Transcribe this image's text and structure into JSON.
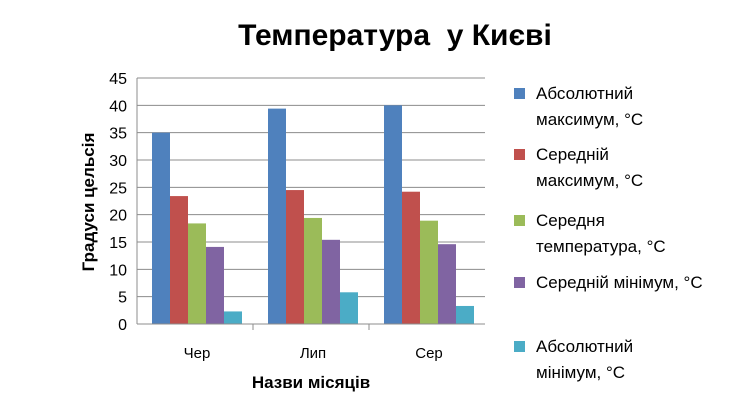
{
  "chart_data": {
    "type": "bar",
    "title": "Температура  у Києві",
    "xlabel": "Назви місяців",
    "ylabel": "Градуси цельсія",
    "categories": [
      "Чер",
      "Лип",
      "Сер"
    ],
    "ylim": [
      0,
      45
    ],
    "yticks": [
      "0",
      "5",
      "10",
      "15",
      "20",
      "25",
      "30",
      "35",
      "40",
      "45"
    ],
    "grid": true,
    "legend_position": "right",
    "series": [
      {
        "name": "Абсолютний максимум,  °С",
        "legend_lines": [
          "Абсолютний",
          "максимум,  °С"
        ],
        "color": "#4F81BD",
        "values": [
          35,
          39.4,
          40
        ]
      },
      {
        "name": "Середній максимум,  °С",
        "legend_lines": [
          "Середній",
          "максимум,  °С"
        ],
        "color": "#C0504D",
        "values": [
          23.4,
          24.5,
          24.2
        ]
      },
      {
        "name": "Середня температура, °С",
        "legend_lines": [
          "Середня",
          "температура, °С"
        ],
        "color": "#9BBB59",
        "values": [
          18.4,
          19.4,
          18.9
        ]
      },
      {
        "name": "Середній мінімум, °С",
        "legend_lines": [
          "Середній мінімум, °С"
        ],
        "color": "#8064A2",
        "values": [
          14.1,
          15.4,
          14.6
        ]
      },
      {
        "name": "Абсолютний мінімум,  °С",
        "legend_lines": [
          "Абсолютний",
          "мінімум,  °С"
        ],
        "color": "#4BACC6",
        "values": [
          2.3,
          5.8,
          3.3
        ]
      }
    ]
  }
}
